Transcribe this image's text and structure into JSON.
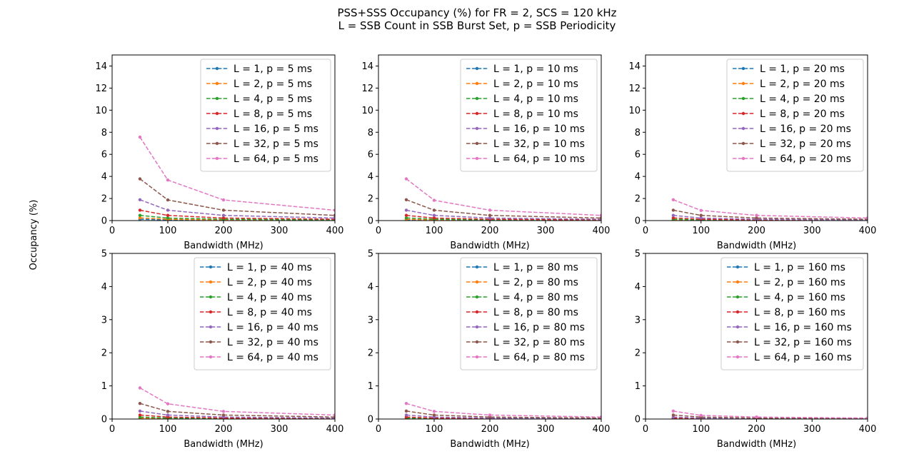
{
  "figure": {
    "title_line1": "PSS+SSS Occupancy (%) for FR = 2, SCS = 120 kHz",
    "title_line2": "L = SSB Count in SSB Burst Set, p = SSB Periodicity",
    "ylabel": "Occupancy (%)"
  },
  "chart_data": [
    {
      "type": "line",
      "xlabel": "Bandwidth (MHz)",
      "xlim": [
        0,
        400
      ],
      "ylim": [
        0,
        15
      ],
      "xticks": [
        0,
        100,
        200,
        300,
        400
      ],
      "yticks": [
        0,
        2,
        4,
        6,
        8,
        10,
        12,
        14
      ],
      "legend": "top-right",
      "x": [
        50,
        100,
        200,
        400
      ],
      "series": [
        {
          "name": "L = 1, p = 5 ms",
          "color": "#1f77b4",
          "values": [
            0.12,
            0.06,
            0.03,
            0.015
          ]
        },
        {
          "name": "L = 2, p = 5 ms",
          "color": "#ff7f0e",
          "values": [
            0.24,
            0.12,
            0.06,
            0.03
          ]
        },
        {
          "name": "L = 4, p = 5 ms",
          "color": "#2ca02c",
          "values": [
            0.47,
            0.23,
            0.12,
            0.06
          ]
        },
        {
          "name": "L = 8, p = 5 ms",
          "color": "#d62728",
          "values": [
            0.94,
            0.47,
            0.23,
            0.12
          ]
        },
        {
          "name": "L = 16, p = 5 ms",
          "color": "#9467bd",
          "values": [
            1.89,
            0.94,
            0.47,
            0.23
          ]
        },
        {
          "name": "L = 32, p = 5 ms",
          "color": "#8c564b",
          "values": [
            3.78,
            1.87,
            0.94,
            0.47
          ]
        },
        {
          "name": "L = 64, p = 5 ms",
          "color": "#e377c2",
          "values": [
            7.56,
            3.67,
            1.87,
            0.94
          ]
        }
      ]
    },
    {
      "type": "line",
      "xlabel": "Bandwidth (MHz)",
      "xlim": [
        0,
        400
      ],
      "ylim": [
        0,
        15
      ],
      "xticks": [
        0,
        100,
        200,
        300,
        400
      ],
      "yticks": [
        0,
        2,
        4,
        6,
        8,
        10,
        12,
        14
      ],
      "legend": "top-right",
      "x": [
        50,
        100,
        200,
        400
      ],
      "series": [
        {
          "name": "L = 1, p = 10 ms",
          "color": "#1f77b4",
          "values": [
            0.06,
            0.03,
            0.015,
            0.008
          ]
        },
        {
          "name": "L = 2, p = 10 ms",
          "color": "#ff7f0e",
          "values": [
            0.12,
            0.06,
            0.03,
            0.015
          ]
        },
        {
          "name": "L = 4, p = 10 ms",
          "color": "#2ca02c",
          "values": [
            0.24,
            0.12,
            0.06,
            0.03
          ]
        },
        {
          "name": "L = 8, p = 10 ms",
          "color": "#d62728",
          "values": [
            0.47,
            0.23,
            0.12,
            0.06
          ]
        },
        {
          "name": "L = 16, p = 10 ms",
          "color": "#9467bd",
          "values": [
            0.94,
            0.47,
            0.23,
            0.12
          ]
        },
        {
          "name": "L = 32, p = 10 ms",
          "color": "#8c564b",
          "values": [
            1.89,
            0.94,
            0.47,
            0.23
          ]
        },
        {
          "name": "L = 64, p = 10 ms",
          "color": "#e377c2",
          "values": [
            3.78,
            1.84,
            0.94,
            0.47
          ]
        }
      ]
    },
    {
      "type": "line",
      "xlabel": "Bandwidth (MHz)",
      "xlim": [
        0,
        400
      ],
      "ylim": [
        0,
        15
      ],
      "xticks": [
        0,
        100,
        200,
        300,
        400
      ],
      "yticks": [
        0,
        2,
        4,
        6,
        8,
        10,
        12,
        14
      ],
      "legend": "top-right",
      "x": [
        50,
        100,
        200,
        400
      ],
      "series": [
        {
          "name": "L = 1, p = 20 ms",
          "color": "#1f77b4",
          "values": [
            0.03,
            0.015,
            0.008,
            0.004
          ]
        },
        {
          "name": "L = 2, p = 20 ms",
          "color": "#ff7f0e",
          "values": [
            0.06,
            0.03,
            0.015,
            0.008
          ]
        },
        {
          "name": "L = 4, p = 20 ms",
          "color": "#2ca02c",
          "values": [
            0.12,
            0.06,
            0.03,
            0.015
          ]
        },
        {
          "name": "L = 8, p = 20 ms",
          "color": "#d62728",
          "values": [
            0.24,
            0.12,
            0.06,
            0.03
          ]
        },
        {
          "name": "L = 16, p = 20 ms",
          "color": "#9467bd",
          "values": [
            0.47,
            0.23,
            0.12,
            0.06
          ]
        },
        {
          "name": "L = 32, p = 20 ms",
          "color": "#8c564b",
          "values": [
            0.94,
            0.47,
            0.23,
            0.12
          ]
        },
        {
          "name": "L = 64, p = 20 ms",
          "color": "#e377c2",
          "values": [
            1.89,
            0.92,
            0.47,
            0.23
          ]
        }
      ]
    },
    {
      "type": "line",
      "xlabel": "Bandwidth (MHz)",
      "xlim": [
        0,
        400
      ],
      "ylim": [
        0,
        5
      ],
      "xticks": [
        0,
        100,
        200,
        300,
        400
      ],
      "yticks": [
        0,
        1,
        2,
        3,
        4,
        5
      ],
      "legend": "top-right",
      "x": [
        50,
        100,
        200,
        400
      ],
      "series": [
        {
          "name": "L = 1, p = 40 ms",
          "color": "#1f77b4",
          "values": [
            0.015,
            0.008,
            0.004,
            0.002
          ]
        },
        {
          "name": "L = 2, p = 40 ms",
          "color": "#ff7f0e",
          "values": [
            0.03,
            0.015,
            0.008,
            0.004
          ]
        },
        {
          "name": "L = 4, p = 40 ms",
          "color": "#2ca02c",
          "values": [
            0.06,
            0.03,
            0.015,
            0.008
          ]
        },
        {
          "name": "L = 8, p = 40 ms",
          "color": "#d62728",
          "values": [
            0.12,
            0.06,
            0.03,
            0.015
          ]
        },
        {
          "name": "L = 16, p = 40 ms",
          "color": "#9467bd",
          "values": [
            0.24,
            0.12,
            0.06,
            0.03
          ]
        },
        {
          "name": "L = 32, p = 40 ms",
          "color": "#8c564b",
          "values": [
            0.47,
            0.23,
            0.12,
            0.06
          ]
        },
        {
          "name": "L = 64, p = 40 ms",
          "color": "#e377c2",
          "values": [
            0.94,
            0.46,
            0.23,
            0.12
          ]
        }
      ]
    },
    {
      "type": "line",
      "xlabel": "Bandwidth (MHz)",
      "xlim": [
        0,
        400
      ],
      "ylim": [
        0,
        5
      ],
      "xticks": [
        0,
        100,
        200,
        300,
        400
      ],
      "yticks": [
        0,
        1,
        2,
        3,
        4,
        5
      ],
      "legend": "top-right",
      "x": [
        50,
        100,
        200,
        400
      ],
      "series": [
        {
          "name": "L = 1, p = 80 ms",
          "color": "#1f77b4",
          "values": [
            0.008,
            0.004,
            0.002,
            0.001
          ]
        },
        {
          "name": "L = 2, p = 80 ms",
          "color": "#ff7f0e",
          "values": [
            0.015,
            0.008,
            0.004,
            0.002
          ]
        },
        {
          "name": "L = 4, p = 80 ms",
          "color": "#2ca02c",
          "values": [
            0.03,
            0.015,
            0.008,
            0.004
          ]
        },
        {
          "name": "L = 8, p = 80 ms",
          "color": "#d62728",
          "values": [
            0.06,
            0.03,
            0.015,
            0.008
          ]
        },
        {
          "name": "L = 16, p = 80 ms",
          "color": "#9467bd",
          "values": [
            0.12,
            0.06,
            0.03,
            0.015
          ]
        },
        {
          "name": "L = 32, p = 80 ms",
          "color": "#8c564b",
          "values": [
            0.24,
            0.12,
            0.06,
            0.03
          ]
        },
        {
          "name": "L = 64, p = 80 ms",
          "color": "#e377c2",
          "values": [
            0.47,
            0.23,
            0.12,
            0.06
          ]
        }
      ]
    },
    {
      "type": "line",
      "xlabel": "Bandwidth (MHz)",
      "xlim": [
        0,
        400
      ],
      "ylim": [
        0,
        5
      ],
      "xticks": [
        0,
        100,
        200,
        300,
        400
      ],
      "yticks": [
        0,
        1,
        2,
        3,
        4,
        5
      ],
      "legend": "top-right",
      "x": [
        50,
        100,
        200,
        400
      ],
      "series": [
        {
          "name": "L = 1, p = 160 ms",
          "color": "#1f77b4",
          "values": [
            0.004,
            0.002,
            0.001,
            0.0005
          ]
        },
        {
          "name": "L = 2, p = 160 ms",
          "color": "#ff7f0e",
          "values": [
            0.008,
            0.004,
            0.002,
            0.001
          ]
        },
        {
          "name": "L = 4, p = 160 ms",
          "color": "#2ca02c",
          "values": [
            0.015,
            0.008,
            0.004,
            0.002
          ]
        },
        {
          "name": "L = 8, p = 160 ms",
          "color": "#d62728",
          "values": [
            0.03,
            0.015,
            0.008,
            0.004
          ]
        },
        {
          "name": "L = 16, p = 160 ms",
          "color": "#9467bd",
          "values": [
            0.06,
            0.03,
            0.015,
            0.008
          ]
        },
        {
          "name": "L = 32, p = 160 ms",
          "color": "#8c564b",
          "values": [
            0.12,
            0.06,
            0.03,
            0.015
          ]
        },
        {
          "name": "L = 64, p = 160 ms",
          "color": "#e377c2",
          "values": [
            0.24,
            0.11,
            0.06,
            0.03
          ]
        }
      ]
    }
  ]
}
